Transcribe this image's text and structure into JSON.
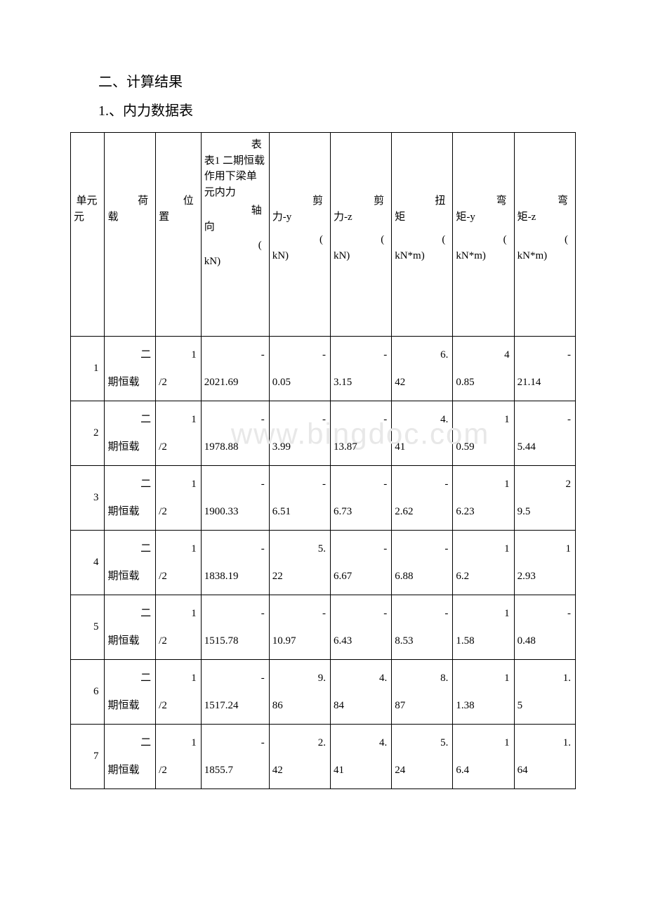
{
  "headings": {
    "section": "二、计算结果",
    "subsection": "1.、内力数据表"
  },
  "table": {
    "caption": "表1 二期恒载作用下梁单元内力",
    "columns": {
      "unit": "单元",
      "load": "荷载",
      "position": "位置",
      "axial_label": "轴向",
      "axial_unit": "(kN)",
      "shear_y_label": "剪力-y",
      "shear_y_unit": "(kN)",
      "shear_z_label": "剪力-z",
      "shear_z_unit": "(kN)",
      "torque_label": "扭矩",
      "torque_unit": "(kN*m)",
      "moment_y_label": "弯矩-y",
      "moment_y_unit": "(kN*m)",
      "moment_z_label": "弯矩-z",
      "moment_z_unit": "(kN*m)"
    },
    "rows": [
      {
        "unit": "1",
        "load_top": "二",
        "load_bottom": "期恒载",
        "pos_top": "1",
        "pos_bottom": "/2",
        "axial_top": "-",
        "axial_bottom": "2021.69",
        "sy_top": "-",
        "sy_bottom": "0.05",
        "sz_top": "-",
        "sz_bottom": "3.15",
        "tq_top": "6.",
        "tq_bottom": "42",
        "my_top": "4",
        "my_bottom": "0.85",
        "mz_top": "-",
        "mz_bottom": "21.14"
      },
      {
        "unit": "2",
        "load_top": "二",
        "load_bottom": "期恒载",
        "pos_top": "1",
        "pos_bottom": "/2",
        "axial_top": "-",
        "axial_bottom": "1978.88",
        "sy_top": "-",
        "sy_bottom": "3.99",
        "sz_top": "-",
        "sz_bottom": "13.87",
        "tq_top": "4.",
        "tq_bottom": "41",
        "my_top": "1",
        "my_bottom": "0.59",
        "mz_top": "-",
        "mz_bottom": "5.44"
      },
      {
        "unit": "3",
        "load_top": "二",
        "load_bottom": "期恒载",
        "pos_top": "1",
        "pos_bottom": "/2",
        "axial_top": "-",
        "axial_bottom": "1900.33",
        "sy_top": "-",
        "sy_bottom": "6.51",
        "sz_top": "-",
        "sz_bottom": "6.73",
        "tq_top": "-",
        "tq_bottom": "2.62",
        "my_top": "1",
        "my_bottom": "6.23",
        "mz_top": "2",
        "mz_bottom": "9.5"
      },
      {
        "unit": "4",
        "load_top": "二",
        "load_bottom": "期恒载",
        "pos_top": "1",
        "pos_bottom": "/2",
        "axial_top": "-",
        "axial_bottom": "1838.19",
        "sy_top": "5.",
        "sy_bottom": "22",
        "sz_top": "-",
        "sz_bottom": "6.67",
        "tq_top": "-",
        "tq_bottom": "6.88",
        "my_top": "1",
        "my_bottom": "6.2",
        "mz_top": "1",
        "mz_bottom": "2.93"
      },
      {
        "unit": "5",
        "load_top": "二",
        "load_bottom": "期恒载",
        "pos_top": "1",
        "pos_bottom": "/2",
        "axial_top": "-",
        "axial_bottom": "1515.78",
        "sy_top": "-",
        "sy_bottom": "10.97",
        "sz_top": "-",
        "sz_bottom": "6.43",
        "tq_top": "-",
        "tq_bottom": "8.53",
        "my_top": "1",
        "my_bottom": "1.58",
        "mz_top": "-",
        "mz_bottom": "0.48"
      },
      {
        "unit": "6",
        "load_top": "二",
        "load_bottom": "期恒载",
        "pos_top": "1",
        "pos_bottom": "/2",
        "axial_top": "-",
        "axial_bottom": "1517.24",
        "sy_top": "9.",
        "sy_bottom": "86",
        "sz_top": "4.",
        "sz_bottom": "84",
        "tq_top": "8.",
        "tq_bottom": "87",
        "my_top": "1",
        "my_bottom": "1.38",
        "mz_top": "1.",
        "mz_bottom": "5"
      },
      {
        "unit": "7",
        "load_top": "二",
        "load_bottom": "期恒载",
        "pos_top": "1",
        "pos_bottom": "/2",
        "axial_top": "-",
        "axial_bottom": "1855.7",
        "sy_top": "2.",
        "sy_bottom": "42",
        "sz_top": "4.",
        "sz_bottom": "41",
        "tq_top": "5.",
        "tq_bottom": "24",
        "my_top": "1",
        "my_bottom": "6.4",
        "mz_top": "1.",
        "mz_bottom": "64"
      }
    ]
  },
  "styling": {
    "page_bg": "#ffffff",
    "text_color": "#000000",
    "border_color": "#000000",
    "watermark_color": "#e8e8e8",
    "watermark_text": "www.bingdoc.com",
    "heading_fontsize": 20,
    "cell_fontsize": 15,
    "font_family": "SimSun"
  }
}
